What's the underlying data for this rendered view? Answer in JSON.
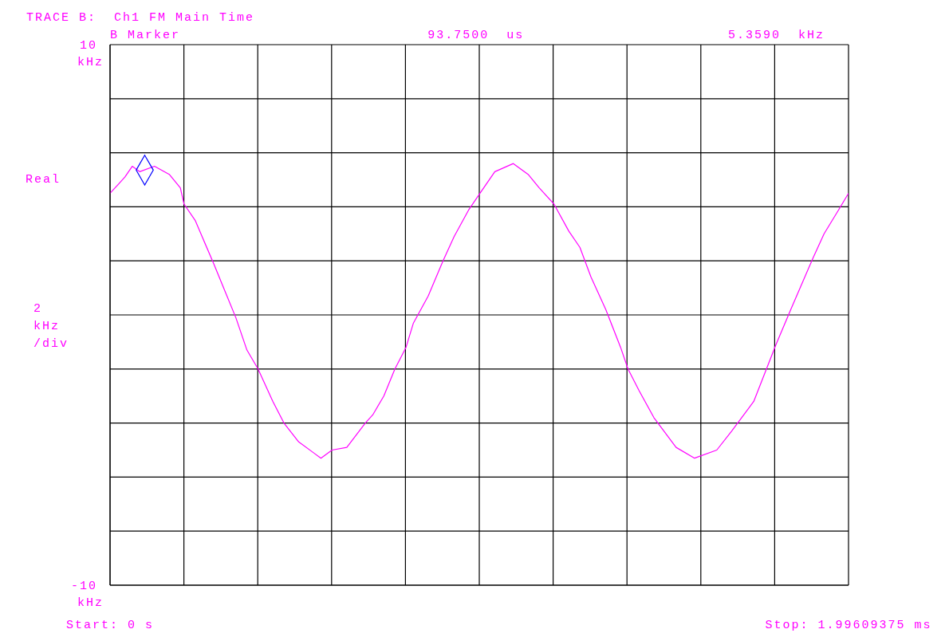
{
  "chart_data": {
    "type": "line",
    "title": "TRACE B:  Ch1 FM Main Time",
    "ylabel": "Real",
    "annotations": [
      "B Marker",
      "93.7500  us",
      "5.3590  kHz",
      "2 kHz /div",
      "kHz",
      "kHz"
    ],
    "xlim": [
      0,
      1.99609375
    ],
    "xticks": [
      {
        "value": 0,
        "label": "Start: 0 s"
      },
      {
        "value": 0.199609375,
        "label": null
      },
      {
        "value": 0.39921875,
        "label": null
      },
      {
        "value": 0.598828125,
        "label": null
      },
      {
        "value": 0.7984375,
        "label": null
      },
      {
        "value": 0.998046875,
        "label": null
      },
      {
        "value": 1.19765625,
        "label": null
      },
      {
        "value": 1.397265625,
        "label": null
      },
      {
        "value": 1.596875,
        "label": null
      },
      {
        "value": 1.796484375,
        "label": null
      },
      {
        "value": 1.99609375,
        "label": "Stop: 1.99609375 ms"
      }
    ],
    "ylim": [
      -10,
      10
    ],
    "yticks": [
      -10,
      {
        "value": -8,
        "label": null
      },
      {
        "value": -6,
        "label": null
      },
      {
        "value": -4,
        "label": null
      },
      {
        "value": -2,
        "label": null
      },
      {
        "value": 0,
        "label": null
      },
      {
        "value": 2,
        "label": null
      },
      {
        "value": 4,
        "label": null
      },
      {
        "value": 6,
        "label": null
      },
      {
        "value": 8,
        "label": null
      },
      10
    ],
    "grid": true,
    "line_style": "solid",
    "series": [
      {
        "type": "line",
        "color": "#ff00ff",
        "marker": "none",
        "x": [
          0,
          0.02,
          0.04,
          0.06,
          0.08,
          0.12,
          0.16,
          0.19,
          0.2,
          0.23,
          0.28,
          0.31,
          0.34,
          0.37,
          0.4,
          0.44,
          0.47,
          0.51,
          0.55,
          0.57,
          0.6,
          0.64,
          0.69,
          0.71,
          0.74,
          0.77,
          0.8,
          0.82,
          0.86,
          0.9,
          0.93,
          0.97,
          1.0,
          1.04,
          1.09,
          1.13,
          1.16,
          1.2,
          1.24,
          1.27,
          1.3,
          1.34,
          1.38,
          1.4,
          1.43,
          1.47,
          1.53,
          1.58,
          1.64,
          1.68,
          1.74,
          1.78,
          1.8,
          1.84,
          1.9,
          1.93,
          1.97,
          1.996
        ],
        "values": [
          4.5,
          4.8,
          5.1,
          5.5,
          5.3,
          5.5,
          5.2,
          4.7,
          4.1,
          3.5,
          1.9,
          0.9,
          -0.1,
          -1.3,
          -2.0,
          -3.2,
          -4.0,
          -4.7,
          -5.1,
          -5.3,
          -5.0,
          -4.9,
          -4.0,
          -3.7,
          -3.0,
          -2.0,
          -1.2,
          -0.3,
          0.7,
          2.0,
          2.9,
          3.9,
          4.5,
          5.3,
          5.6,
          5.2,
          4.7,
          4.1,
          3.1,
          2.5,
          1.4,
          0.2,
          -1.2,
          -2.0,
          -2.8,
          -3.8,
          -4.9,
          -5.3,
          -5.0,
          -4.3,
          -3.2,
          -1.8,
          -1.1,
          0.2,
          2.1,
          3.0,
          3.9,
          4.5
        ]
      },
      {
        "type": "scatter",
        "color": "#0000ff",
        "marker": "diamond",
        "x": [
          0.09375
        ],
        "values": [
          5.359
        ]
      }
    ]
  }
}
